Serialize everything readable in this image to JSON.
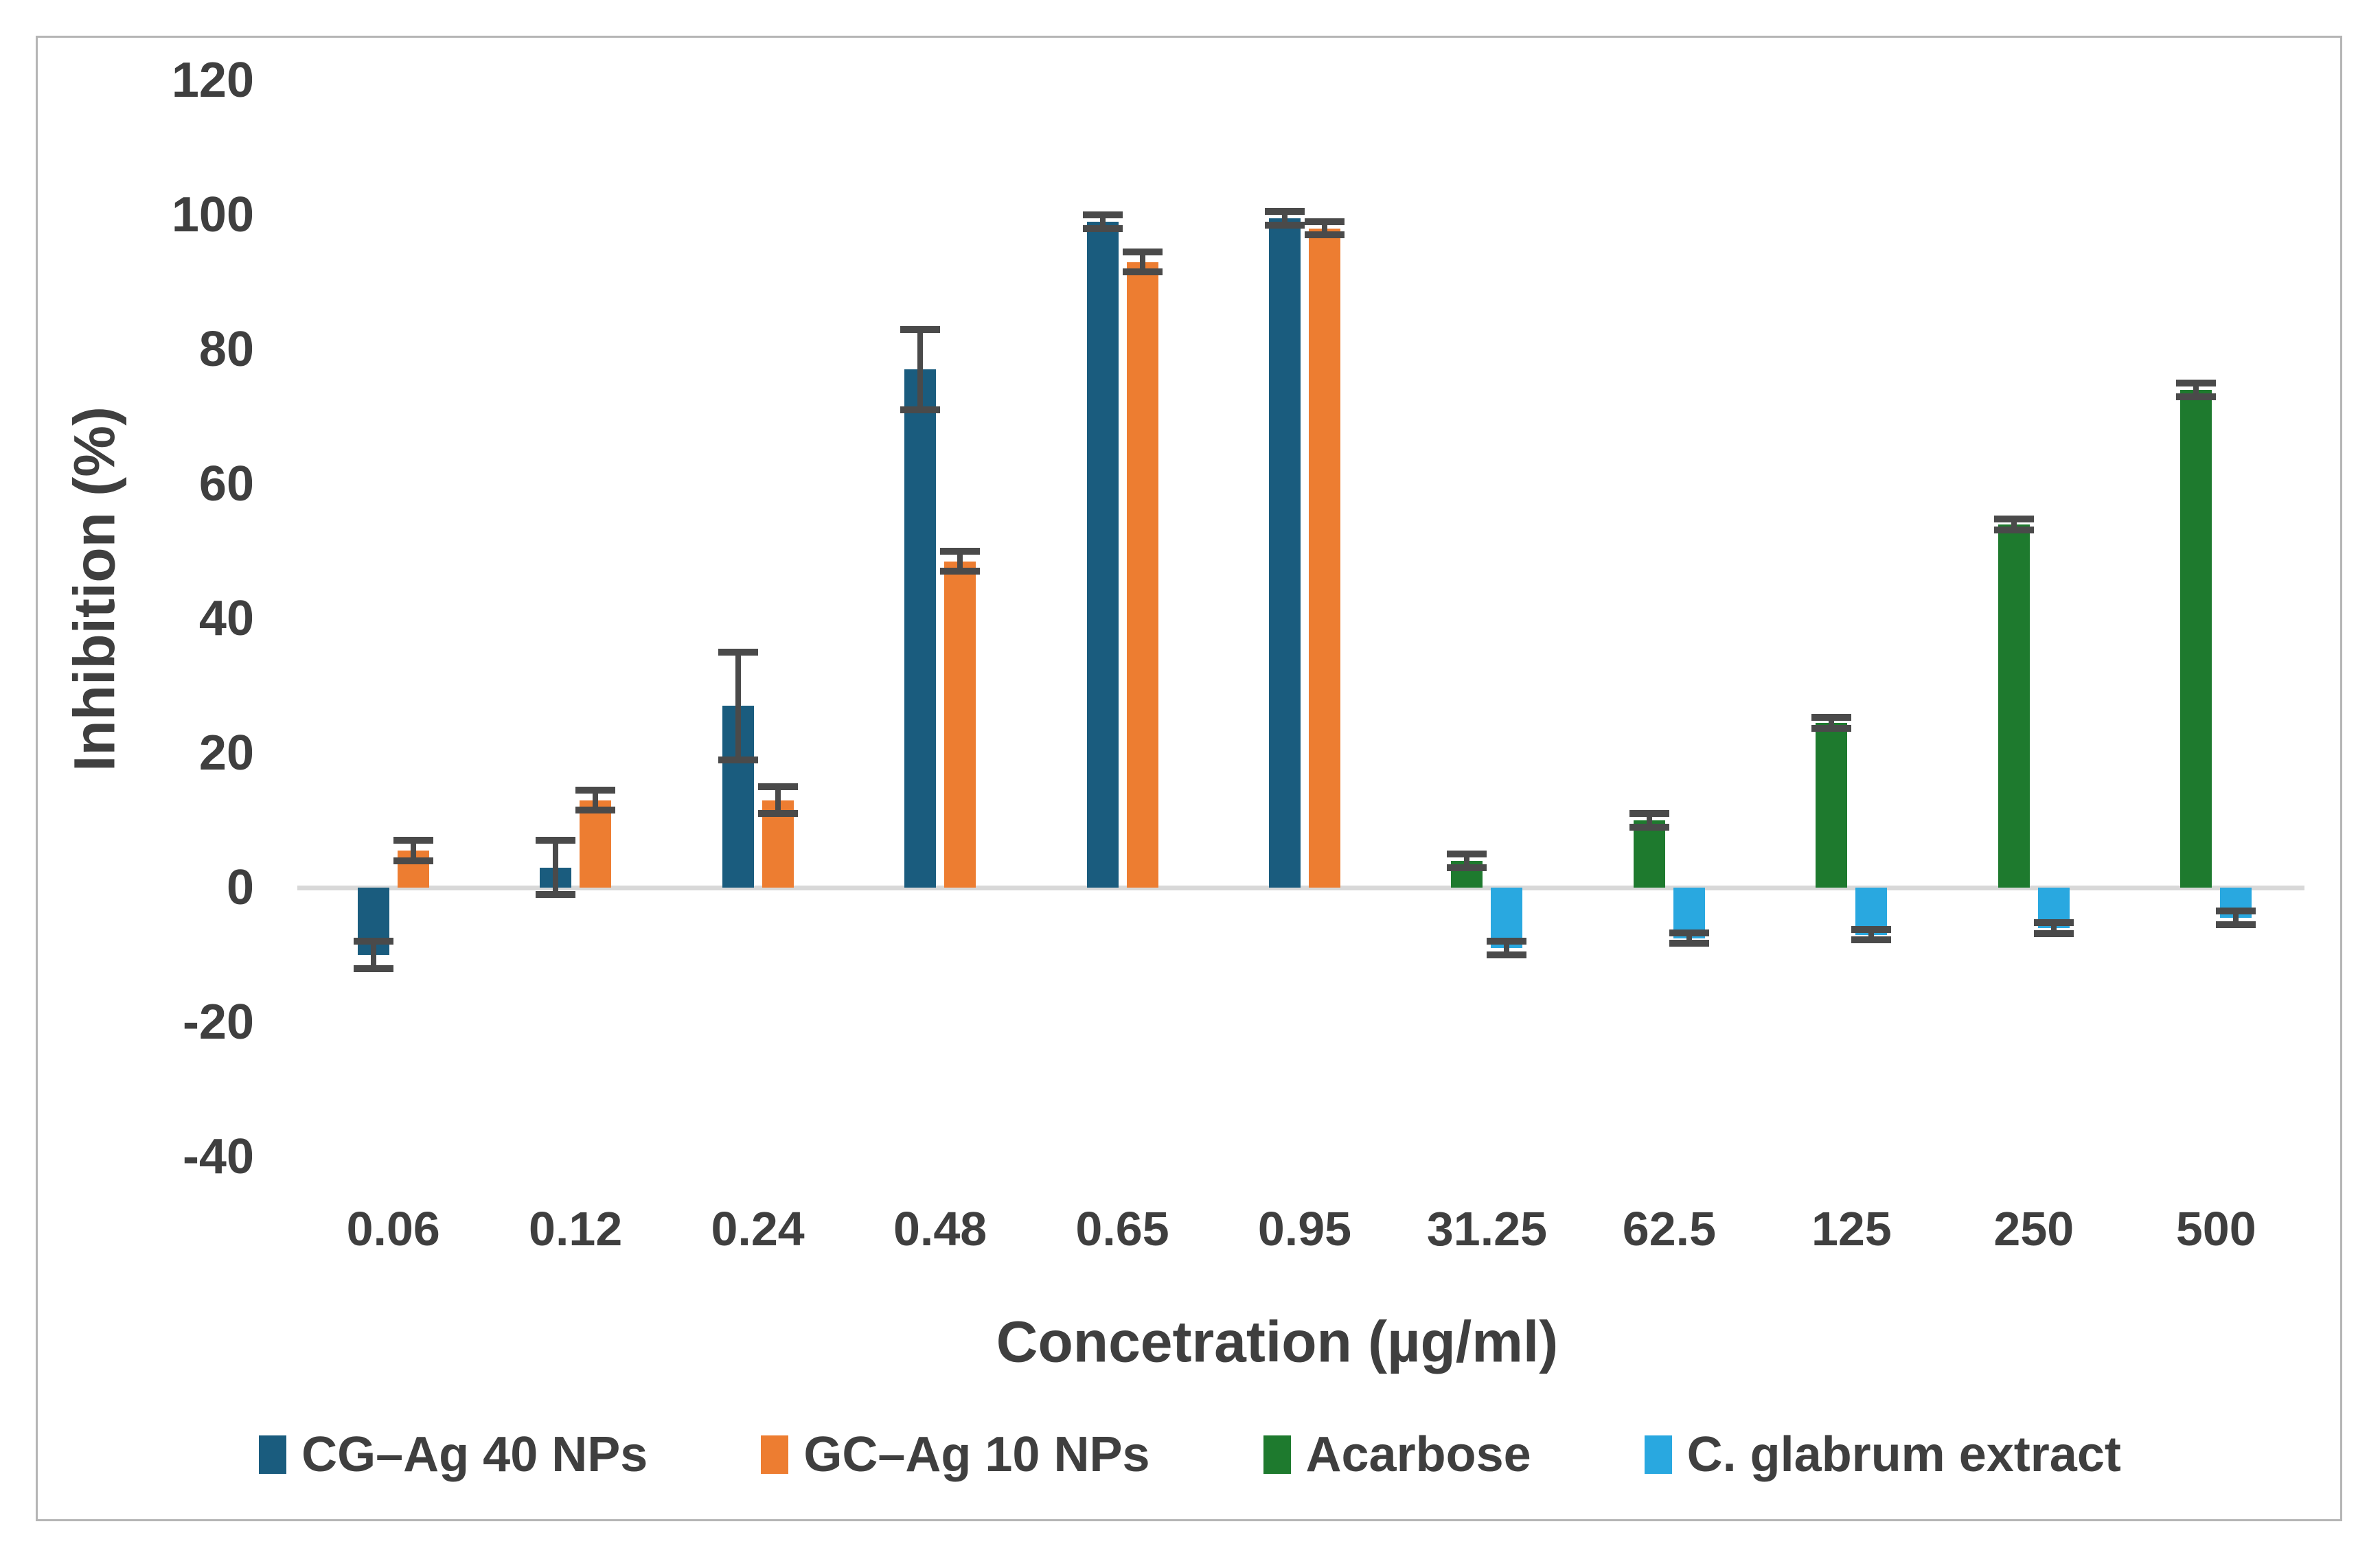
{
  "figure": {
    "background_color": "#ffffff",
    "border_color": "#b5b5b5"
  },
  "chart_data": {
    "type": "bar",
    "title": "",
    "xlabel": "Concetration (µg/ml)",
    "ylabel": "Inhibition (%)",
    "categories": [
      "0.06",
      "0.12",
      "0.24",
      "0.48",
      "0.65",
      "0.95",
      "31.25",
      "62.5",
      "125",
      "250",
      "500"
    ],
    "series": [
      {
        "name": "CG–Ag 40 NPs",
        "color": "#1A5C7E",
        "values": [
          -10,
          3,
          27,
          77,
          99,
          99.5,
          null,
          null,
          null,
          null,
          null
        ],
        "errors": [
          2,
          4,
          8,
          6,
          1,
          1,
          null,
          null,
          null,
          null,
          null
        ]
      },
      {
        "name": "GC–Ag 10 NPs",
        "color": "#ED7D31",
        "values": [
          5.5,
          13,
          13,
          48.5,
          93,
          98,
          null,
          null,
          null,
          null,
          null
        ],
        "errors": [
          1.5,
          1.5,
          2,
          1.5,
          1.5,
          1,
          null,
          null,
          null,
          null,
          null
        ]
      },
      {
        "name": "Acarbose",
        "color": "#1E7A2E",
        "values": [
          null,
          null,
          null,
          null,
          null,
          null,
          4,
          10,
          24.5,
          54,
          74
        ],
        "errors": [
          null,
          null,
          null,
          null,
          null,
          null,
          1,
          1,
          0.8,
          0.8,
          1
        ]
      },
      {
        "name": "C. glabrum extract",
        "color": "#29A8E0",
        "values": [
          null,
          null,
          null,
          null,
          null,
          null,
          -9,
          -7.5,
          -7,
          -6,
          -4.5
        ],
        "errors": [
          null,
          null,
          null,
          null,
          null,
          null,
          1,
          0.8,
          0.8,
          0.8,
          1
        ]
      }
    ],
    "yticks": [
      120,
      100,
      80,
      60,
      40,
      20,
      0,
      -20,
      -40
    ],
    "ylim": [
      -40,
      120
    ],
    "grid": false,
    "legend_position": "bottom",
    "axis_text_color": "#3f3f3f",
    "error_bar_color": "#4a4a4a",
    "zero_line_color": "#d8d8d8"
  }
}
